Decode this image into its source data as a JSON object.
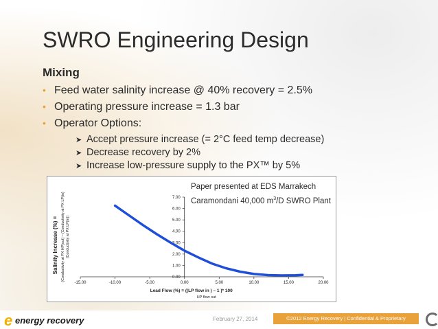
{
  "slide": {
    "title": "SWRO Engineering Design",
    "subheading": "Mixing",
    "bullets": [
      "Feed water salinity increase @ 40% recovery = 2.5%",
      "Operating pressure increase = 1.3 bar",
      "Operator Options:"
    ],
    "sub_bullets": [
      "Accept pressure increase (= 2°C feed temp decrease)",
      "Decrease recovery by 2%",
      "Increase low-pressure supply to the PX™ by 5%"
    ],
    "note_line1": "Paper presented at EDS Marrakech",
    "note_line2_a": "Caramondani 40,000 m",
    "note_line2_sup": "3",
    "note_line2_b": "/D SWRO Plant"
  },
  "footer": {
    "logo_text": "energy recovery",
    "date": "February 27, 2014",
    "copyright": "©2012 Energy Recovery | Confidential & Proprietary"
  },
  "colors": {
    "accent": "#e9a23a",
    "curve": "#1f4fd8",
    "text": "#2b2b2b"
  },
  "chart_data": {
    "type": "line",
    "xlim": [
      -15,
      20
    ],
    "ylim": [
      0,
      7
    ],
    "x_ticks": [
      "-15.00",
      "-10.00",
      "-5.00",
      "0.00",
      "5.00",
      "10.00",
      "15.00",
      "20.00"
    ],
    "y_ticks": [
      "0.00",
      "1.00",
      "2.00",
      "3.00",
      "4.00",
      "5.00",
      "6.00",
      "7.00"
    ],
    "ylabel_main": "Salinity Increase (%) =",
    "ylabel_line2": "(Conductivity at PX HP(out) – (Conductivity at PX LP(in)",
    "ylabel_line3": "(Conductivity at PX LP(in))",
    "xlabel_main": "Lead Flow (%) = ((LP flow  in  ) – 1 )* 100",
    "xlabel_sub": "HP flow  out",
    "series": [
      {
        "x": [
          -10,
          -8,
          -6,
          -4,
          -2,
          0,
          2,
          4,
          6,
          8,
          10,
          12,
          14,
          16,
          17
        ],
        "y": [
          6.25,
          5.4,
          4.55,
          3.75,
          3.0,
          2.3,
          1.7,
          1.15,
          0.75,
          0.45,
          0.25,
          0.15,
          0.12,
          0.14,
          0.16
        ]
      }
    ]
  }
}
